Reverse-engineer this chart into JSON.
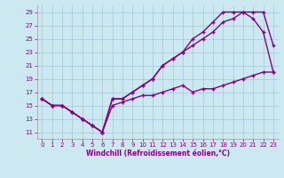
{
  "xlabel": "Windchill (Refroidissement éolien,°C)",
  "bg_color": "#cce8f0",
  "grid_color": "#aaccdd",
  "line_color": "#880088",
  "xlim": [
    -0.5,
    23.5
  ],
  "ylim": [
    10,
    30
  ],
  "yticks": [
    11,
    13,
    15,
    17,
    19,
    21,
    23,
    25,
    27,
    29
  ],
  "xticks": [
    0,
    1,
    2,
    3,
    4,
    5,
    6,
    7,
    8,
    9,
    10,
    11,
    12,
    13,
    14,
    15,
    16,
    17,
    18,
    19,
    20,
    21,
    22,
    23
  ],
  "line1_x": [
    0,
    1,
    2,
    3,
    4,
    5,
    6,
    7,
    8,
    9,
    10,
    11,
    12,
    13,
    14,
    15,
    16,
    17,
    18,
    19,
    20,
    21,
    22,
    23
  ],
  "line1_y": [
    16,
    15,
    15,
    14,
    13,
    12,
    11,
    16,
    16,
    17,
    18,
    19,
    21,
    22,
    23,
    25,
    26,
    27.5,
    29,
    29,
    29,
    29,
    29,
    24
  ],
  "line2_x": [
    0,
    1,
    2,
    3,
    4,
    5,
    6,
    7,
    8,
    9,
    10,
    11,
    12,
    13,
    14,
    15,
    16,
    17,
    18,
    19,
    20,
    21,
    22,
    23
  ],
  "line2_y": [
    16,
    15,
    15,
    14,
    13,
    12,
    11,
    16,
    16,
    17,
    18,
    19,
    21,
    22,
    23,
    24,
    25,
    26,
    27.5,
    28,
    29,
    28,
    26,
    20
  ],
  "line3_x": [
    0,
    1,
    2,
    3,
    4,
    5,
    6,
    7,
    8,
    9,
    10,
    11,
    12,
    13,
    14,
    15,
    16,
    17,
    18,
    19,
    20,
    21,
    22,
    23
  ],
  "line3_y": [
    16,
    15,
    15,
    14,
    13,
    12,
    11,
    15,
    15.5,
    16,
    16.5,
    16.5,
    17,
    17.5,
    18,
    17,
    17.5,
    17.5,
    18,
    18.5,
    19,
    19.5,
    20,
    20
  ]
}
